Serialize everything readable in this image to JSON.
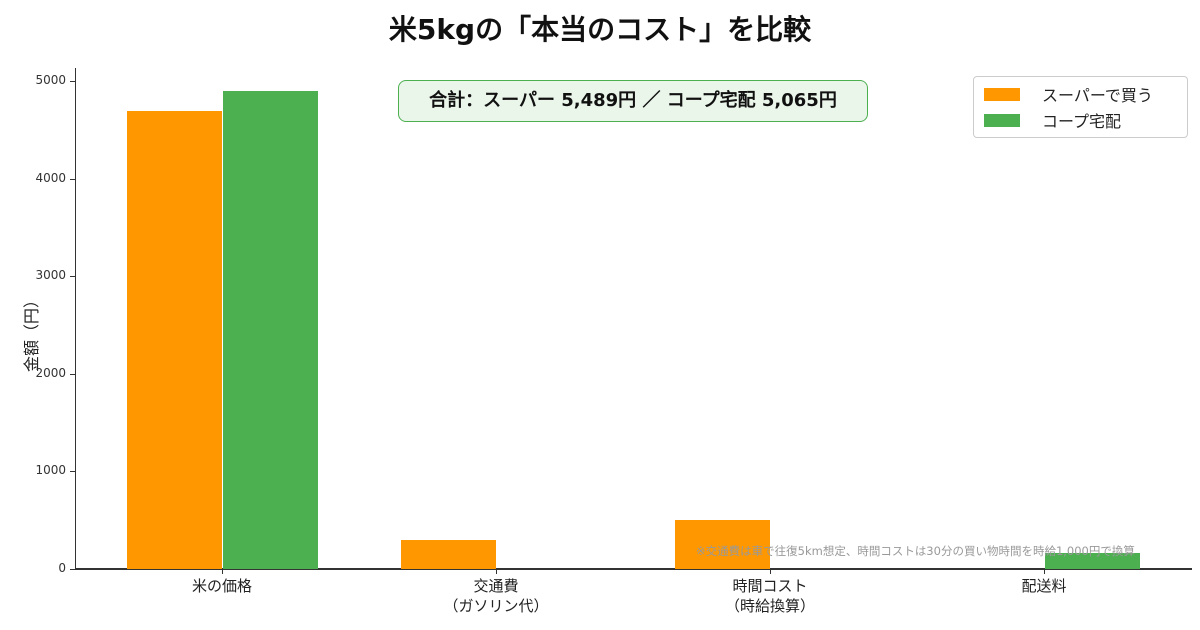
{
  "title": "米5kgの「本当のコスト」を比較",
  "chart_data": {
    "type": "bar",
    "title": "米5kgの「本当のコスト」を比較",
    "xlabel": "",
    "ylabel": "金額（円）",
    "ylim": [
      0,
      5150
    ],
    "yticks": [
      0,
      1000,
      2000,
      3000,
      4000,
      5000
    ],
    "grid": false,
    "legend_position": "upper right",
    "categories": [
      "米の価格",
      "交通費\n（ガソリン代）",
      "時間コスト\n（時給換算）",
      "配送料"
    ],
    "series": [
      {
        "name": "スーパーで買う",
        "color": "#ff9800",
        "values": [
          4689,
          300,
          500,
          0
        ]
      },
      {
        "name": "コープ宅配",
        "color": "#4caf50",
        "values": [
          4900,
          0,
          0,
          165
        ]
      }
    ],
    "annotations": [
      "合計：スーパー 5,489円 ／ コープ宅配 5,065円",
      "※交通費は車で往復5km想定、時間コストは30分の買い物時間を時給1,000円で換算"
    ]
  },
  "axis": {
    "ylabel": "金額（円）",
    "yticks": [
      "0",
      "1000",
      "2000",
      "3000",
      "4000",
      "5000"
    ],
    "xlabels": [
      {
        "line1": "米の価格",
        "line2": ""
      },
      {
        "line1": "交通費",
        "line2": "（ガソリン代）"
      },
      {
        "line1": "時間コスト",
        "line2": "（時給換算）"
      },
      {
        "line1": "配送料",
        "line2": ""
      }
    ]
  },
  "total_box": "合計：スーパー 5,489円 ／ コープ宅配 5,065円",
  "legend": [
    {
      "label": "スーパーで買う",
      "color": "#ff9800"
    },
    {
      "label": "コープ宅配",
      "color": "#4caf50"
    }
  ],
  "note": "※交通費は車で往復5km想定、時間コストは30分の買い物時間を時給1,000円で換算"
}
